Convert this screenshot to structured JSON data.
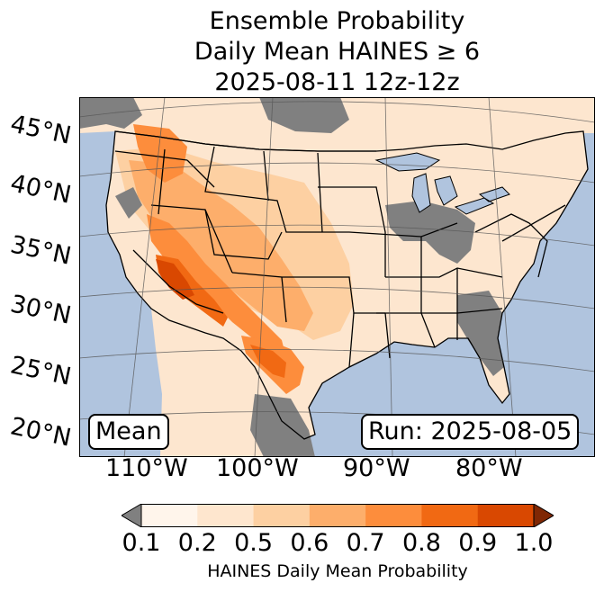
{
  "title": {
    "line1": "Ensemble Probability",
    "line2": "Daily Mean HAINES ≥ 6",
    "line3": "2025-08-11 12z-12z"
  },
  "map": {
    "lat_labels": [
      "45°N",
      "40°N",
      "35°N",
      "30°N",
      "25°N",
      "20°N"
    ],
    "lon_labels": [
      "110°W",
      "100°W",
      "90°W",
      "80°W"
    ],
    "stat_box": "Mean",
    "run_box": "Run: 2025-08-05",
    "colors": {
      "ocean": "#b0c4de",
      "land_outside": "#b0c4de",
      "nodata": "#808080",
      "border": "#000000",
      "gridline": "#555555"
    }
  },
  "colorbar": {
    "label": "HAINES Daily Mean Probability",
    "ticks": [
      "0.1",
      "0.2",
      "0.5",
      "0.6",
      "0.7",
      "0.8",
      "0.9",
      "1.0"
    ],
    "under_color": "#808080",
    "over_color": "#7f2704",
    "bins": [
      "#fff5eb",
      "#fee6ce",
      "#fdd0a2",
      "#fdae6b",
      "#fd8d3c",
      "#f16913",
      "#d94801"
    ]
  }
}
